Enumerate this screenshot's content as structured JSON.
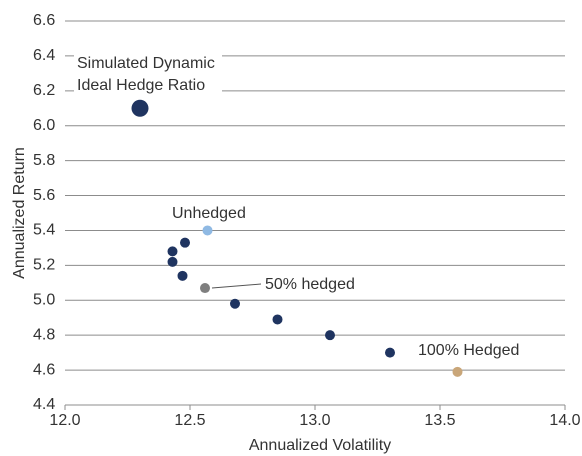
{
  "chart_data": {
    "type": "scatter",
    "x": [
      12.3,
      12.57,
      12.48,
      12.43,
      12.43,
      12.47,
      12.56,
      12.68,
      12.85,
      13.06,
      13.3,
      13.57
    ],
    "y": [
      6.1,
      5.4,
      5.33,
      5.28,
      5.22,
      5.14,
      5.07,
      4.98,
      4.89,
      4.8,
      4.7,
      4.59
    ],
    "colors": [
      "#1f3460",
      "#8fb9e3",
      "#1f3460",
      "#1f3460",
      "#1f3460",
      "#1f3460",
      "#7f7f7f",
      "#1f3460",
      "#1f3460",
      "#1f3460",
      "#1f3460",
      "#c9a679"
    ],
    "xlim": [
      12,
      14
    ],
    "xticks": [
      {
        "value": 12,
        "label": "12.0"
      },
      12.5,
      {
        "value": 13,
        "label": "13.0"
      },
      13.5,
      {
        "value": 14,
        "label": "14.0"
      }
    ],
    "ylim": [
      4.4,
      6.6
    ],
    "yticks": [
      4.4,
      4.6,
      4.8,
      {
        "value": 5,
        "label": "5.0"
      },
      5.2,
      5.4,
      5.6,
      5.8,
      {
        "value": 6,
        "label": "6.0"
      },
      6.2,
      6.4,
      6.6
    ],
    "grid": true,
    "xlabel": "Annualized Volatility",
    "ylabel": "Annualized Return",
    "annotations": [
      "Simulated Dynamic",
      "Ideal Hedge Ratio",
      "Unhedged",
      "50% hedged",
      "100% Hedged"
    ]
  }
}
